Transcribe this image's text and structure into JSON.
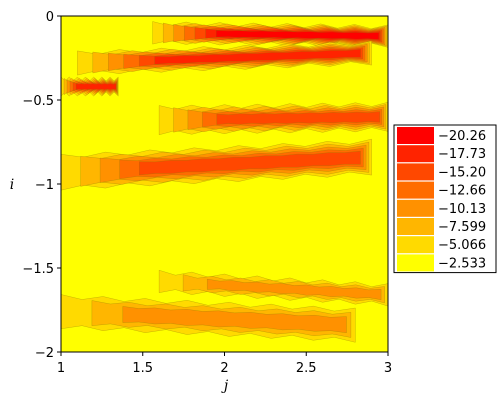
{
  "chart_data": {
    "type": "heatmap",
    "subtype": "filled-contour",
    "title": "",
    "xlabel": "j",
    "ylabel": "i",
    "xlim": [
      1,
      3
    ],
    "ylim": [
      -2,
      0
    ],
    "xticks": [
      {
        "value": 1,
        "label": "1"
      },
      {
        "value": 1.5,
        "label": "1.5"
      },
      {
        "value": 2,
        "label": "2"
      },
      {
        "value": 2.5,
        "label": "2.5"
      },
      {
        "value": 3,
        "label": "3"
      }
    ],
    "yticks": [
      {
        "value": 0,
        "label": "0"
      },
      {
        "value": -0.5,
        "label": "−0.5"
      },
      {
        "value": -1,
        "label": "−1"
      },
      {
        "value": -1.5,
        "label": "−1.5"
      },
      {
        "value": -2,
        "label": "−2"
      }
    ],
    "background_color": "#ffff00",
    "legend_placement": "right",
    "levels": [
      {
        "label": "−20.26",
        "value": -20.26,
        "color": "#ff0000"
      },
      {
        "label": "−17.73",
        "value": -17.73,
        "color": "#ff2300"
      },
      {
        "label": "−15.20",
        "value": -15.2,
        "color": "#ff4800"
      },
      {
        "label": "−12.66",
        "value": -12.66,
        "color": "#ff6c00"
      },
      {
        "label": "−10.13",
        "value": -10.13,
        "color": "#ff9100"
      },
      {
        "label": "−7.599",
        "value": -7.599,
        "color": "#ffb600"
      },
      {
        "label": "−5.066",
        "value": -5.066,
        "color": "#ffda00"
      },
      {
        "label": "−2.533",
        "value": -2.533,
        "color": "#ffff00"
      }
    ],
    "bands": [
      {
        "x0": 1.56,
        "x1": 3.0,
        "y_center": -0.1,
        "thickness": 0.11,
        "max_level": 0,
        "tilt": -0.02
      },
      {
        "x0": 1.1,
        "x1": 2.9,
        "y_center": -0.28,
        "thickness": 0.12,
        "max_level": 1,
        "tilt": 0.06
      },
      {
        "x0": 1.0,
        "x1": 1.35,
        "y_center": -0.42,
        "thickness": 0.09,
        "max_level": 1,
        "tilt": 0.0
      },
      {
        "x0": 1.6,
        "x1": 3.0,
        "y_center": -0.62,
        "thickness": 0.15,
        "max_level": 2,
        "tilt": 0.02
      },
      {
        "x0": 1.0,
        "x1": 2.9,
        "y_center": -0.93,
        "thickness": 0.19,
        "max_level": 2,
        "tilt": 0.09
      },
      {
        "x0": 1.6,
        "x1": 3.0,
        "y_center": -1.58,
        "thickness": 0.11,
        "max_level": 4,
        "tilt": -0.08
      },
      {
        "x0": 1.0,
        "x1": 2.8,
        "y_center": -1.76,
        "thickness": 0.18,
        "max_level": 4,
        "tilt": -0.08
      }
    ]
  }
}
